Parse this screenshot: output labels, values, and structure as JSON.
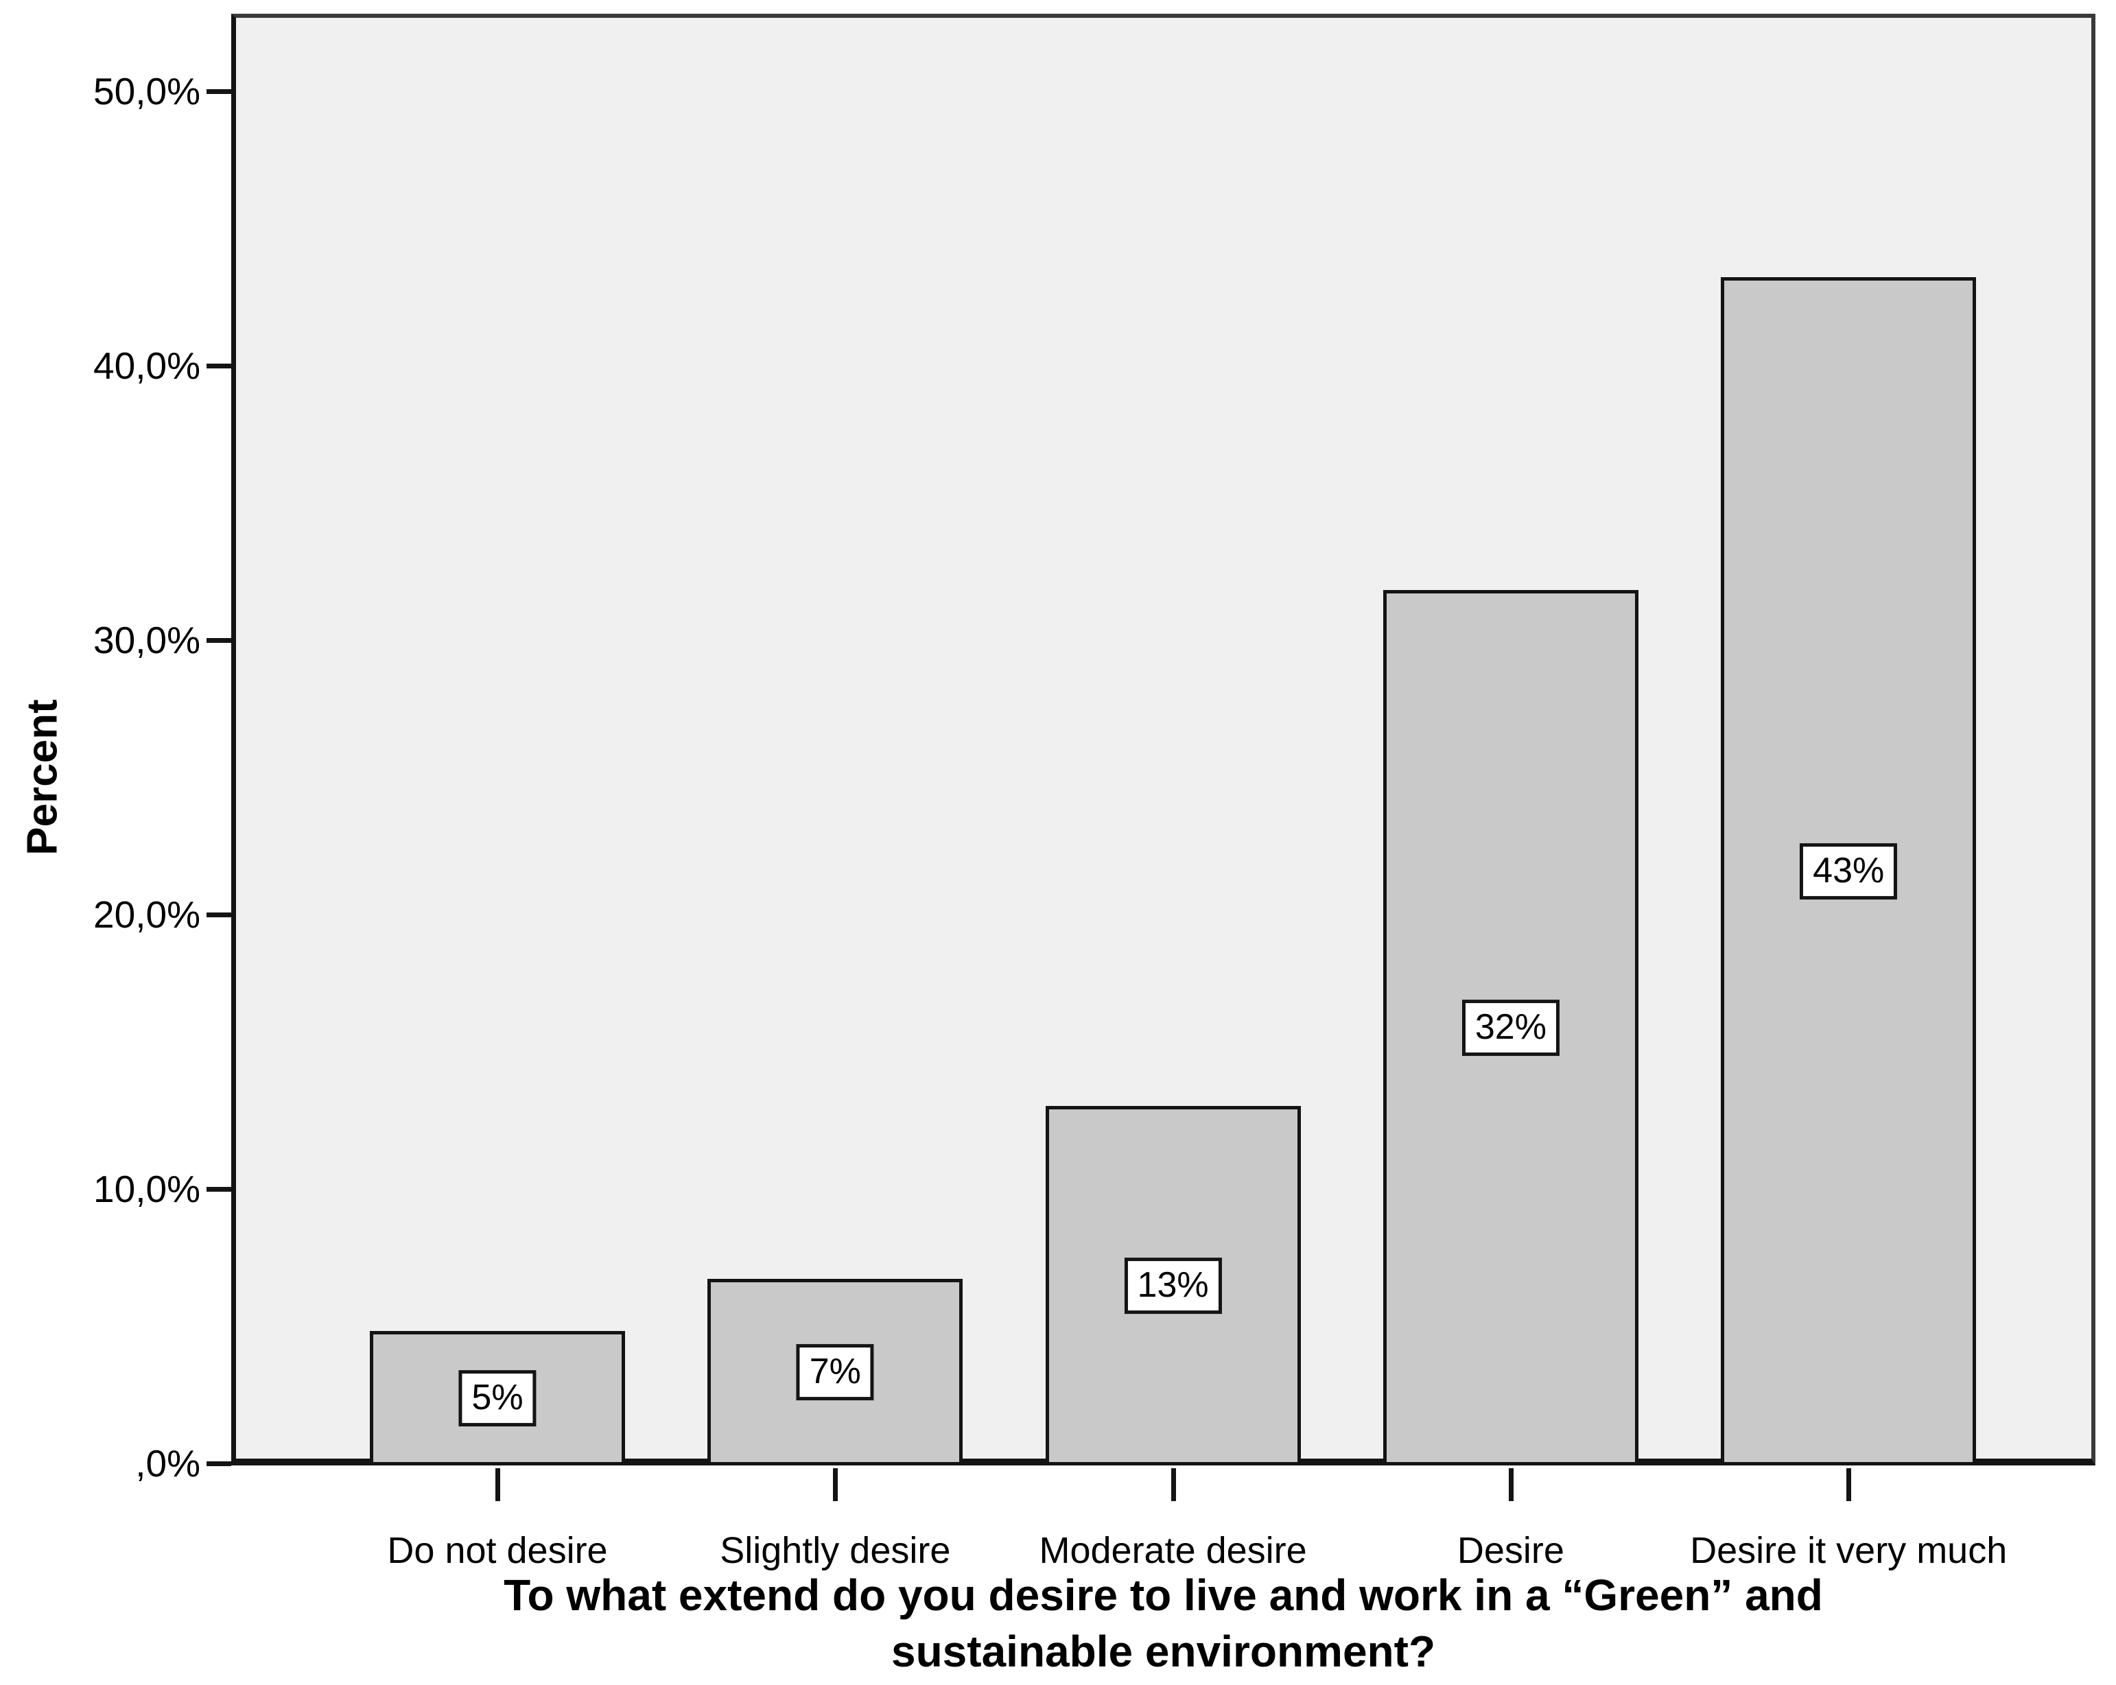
{
  "chart_data": {
    "type": "bar",
    "title": "To what extend do you desire to live and work in a “Green” and sustainable environment?",
    "xlabel_lines": [
      "To what extend do you desire to live and work in a “Green” and",
      "sustainable environment?"
    ],
    "ylabel": "Percent",
    "categories": [
      "Do not desire",
      "Slightly desire",
      "Moderate desire",
      "Desire",
      "Desire it very much"
    ],
    "values": [
      4.9,
      6.8,
      13.1,
      31.9,
      43.3
    ],
    "value_labels": [
      "5%",
      "7%",
      "13%",
      "32%",
      "43%"
    ],
    "y_ticks": [
      {
        "label": ",0%",
        "value": 0
      },
      {
        "label": "10,0%",
        "value": 10
      },
      {
        "label": "20,0%",
        "value": 20
      },
      {
        "label": "30,0%",
        "value": 30
      },
      {
        "label": "40,0%",
        "value": 40
      },
      {
        "label": "50,0%",
        "value": 50
      }
    ],
    "ylim": [
      0,
      52.9
    ],
    "grid": false,
    "legend": null,
    "decimal_separator": ",",
    "colors": {
      "bar_fill": "#c9c9c9",
      "bar_border": "#141414",
      "plot_bg": "#f0f0f0",
      "plot_border": "#3a3a3a",
      "axis": "#141414",
      "label_box_bg": "#ffffff",
      "text": "#000000",
      "page_bg": "#ffffff"
    }
  }
}
